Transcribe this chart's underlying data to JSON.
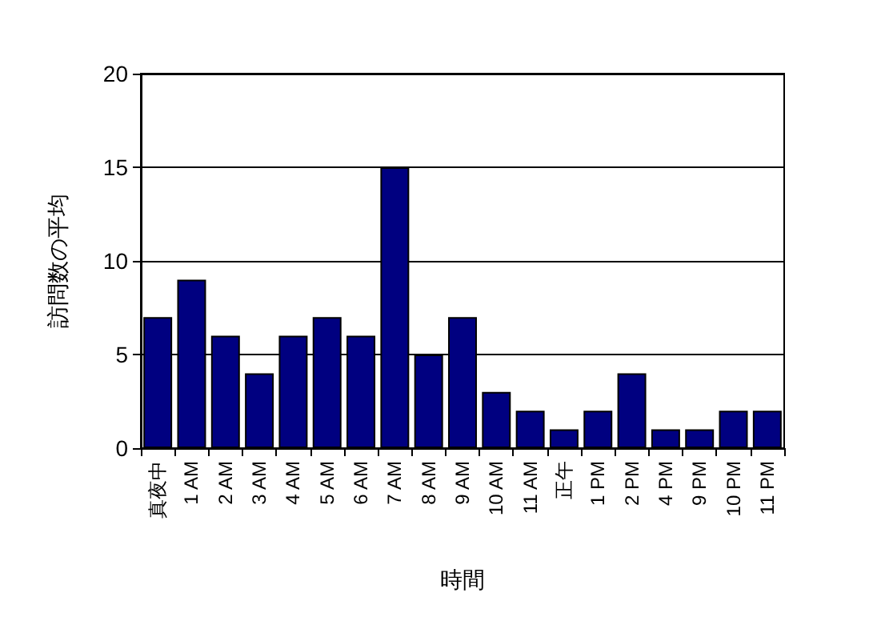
{
  "chart_data": {
    "type": "bar",
    "xlabel": "時間",
    "ylabel": "訪問数の平均",
    "categories": [
      "真夜中",
      "1 AM",
      "2 AM",
      "3 AM",
      "4 AM",
      "5 AM",
      "6 AM",
      "7 AM",
      "8 AM",
      "9 AM",
      "10 AM",
      "11 AM",
      "正午",
      "1 PM",
      "2 PM",
      "4 PM",
      "9 PM",
      "10 PM",
      "11 PM"
    ],
    "values": [
      7,
      9,
      6,
      4,
      6,
      7,
      6,
      15,
      5,
      7,
      3,
      2,
      1,
      2,
      4,
      1,
      1,
      2,
      2
    ],
    "color": "#000080",
    "ylim": [
      0,
      20
    ],
    "yticks": [
      0,
      5,
      10,
      15,
      20
    ],
    "grid": "y"
  }
}
